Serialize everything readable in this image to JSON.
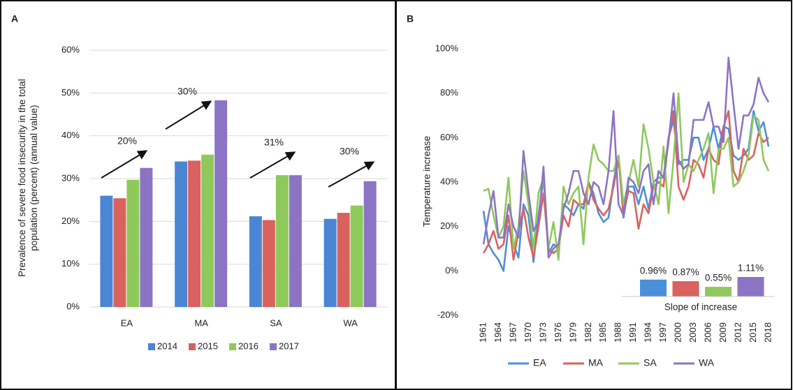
{
  "chart_data": [
    {
      "type": "bar",
      "panel": "A",
      "y_label": "Prevalence of severe food insecurity in the total population (percent) (annual value)",
      "categories": [
        "EA",
        "MA",
        "SA",
        "WA"
      ],
      "series": [
        {
          "name": "2014",
          "color": "#4a86d4",
          "values": [
            26,
            34,
            21.2,
            20.6
          ]
        },
        {
          "name": "2015",
          "color": "#d9625e",
          "values": [
            25.4,
            34.2,
            20.3,
            22
          ]
        },
        {
          "name": "2016",
          "color": "#8fc85b",
          "values": [
            29.7,
            35.6,
            30.8,
            23.7
          ]
        },
        {
          "name": "2017",
          "color": "#8c74c4",
          "values": [
            32.5,
            48.3,
            30.8,
            29.4
          ]
        }
      ],
      "annotations": [
        "20%",
        "30%",
        "31%",
        "30%"
      ],
      "ylim": [
        0,
        60
      ],
      "yticks": [
        {
          "value": 0,
          "label": "0%"
        },
        {
          "value": 10,
          "label": "10%"
        },
        {
          "value": 20,
          "label": "20%"
        },
        {
          "value": 30,
          "label": "30%"
        },
        {
          "value": 40,
          "label": "40%"
        },
        {
          "value": 50,
          "label": "50%"
        },
        {
          "value": 60,
          "label": "60%"
        }
      ],
      "grid": true,
      "legend": "bottom"
    },
    {
      "type": "line",
      "panel": "B",
      "y_label": "Temperature increase",
      "x": [
        1961,
        1962,
        1963,
        1964,
        1965,
        1966,
        1967,
        1968,
        1969,
        1970,
        1971,
        1972,
        1973,
        1974,
        1975,
        1976,
        1977,
        1978,
        1979,
        1980,
        1981,
        1982,
        1983,
        1984,
        1985,
        1986,
        1987,
        1988,
        1989,
        1990,
        1991,
        1992,
        1993,
        1994,
        1995,
        1996,
        1997,
        1998,
        1999,
        2000,
        2001,
        2002,
        2003,
        2004,
        2005,
        2006,
        2007,
        2008,
        2009,
        2010,
        2011,
        2012,
        2013,
        2014,
        2015,
        2016,
        2017,
        2018
      ],
      "series": [
        {
          "name": "EA",
          "color": "#4a90d9",
          "values": [
            27,
            12,
            8,
            5,
            0,
            20,
            12,
            6,
            30,
            25,
            4,
            25,
            42,
            8,
            12,
            10,
            30,
            28,
            25,
            30,
            28,
            40,
            35,
            26,
            22,
            24,
            40,
            52,
            24,
            38,
            38,
            30,
            38,
            28,
            40,
            42,
            42,
            60,
            68,
            48,
            50,
            50,
            60,
            60,
            50,
            55,
            65,
            55,
            65,
            64,
            52,
            50,
            52,
            55,
            72,
            63,
            67,
            56
          ]
        },
        {
          "name": "MA",
          "color": "#d9625e",
          "values": [
            8,
            12,
            18,
            10,
            12,
            25,
            5,
            18,
            28,
            15,
            6,
            20,
            35,
            10,
            8,
            10,
            25,
            20,
            32,
            30,
            30,
            40,
            32,
            28,
            25,
            28,
            38,
            50,
            26,
            36,
            35,
            19,
            30,
            26,
            38,
            40,
            38,
            60,
            72,
            38,
            32,
            38,
            50,
            48,
            42,
            55,
            50,
            48,
            65,
            72,
            45,
            40,
            55,
            50,
            52,
            62,
            58,
            60
          ]
        },
        {
          "name": "SA",
          "color": "#8fc85b",
          "values": [
            36,
            37,
            25,
            15,
            20,
            42,
            10,
            20,
            45,
            30,
            10,
            35,
            42,
            10,
            22,
            5,
            38,
            30,
            35,
            38,
            12,
            42,
            57,
            50,
            48,
            45,
            45,
            52,
            30,
            40,
            50,
            38,
            66,
            55,
            40,
            30,
            56,
            26,
            50,
            80,
            40,
            48,
            45,
            50,
            55,
            62,
            35,
            55,
            55,
            60,
            38,
            40,
            45,
            52,
            70,
            68,
            50,
            45
          ]
        },
        {
          "name": "WA",
          "color": "#8c74c4",
          "values": [
            12,
            25,
            36,
            15,
            15,
            30,
            20,
            15,
            54,
            35,
            18,
            22,
            47,
            6,
            10,
            12,
            28,
            35,
            45,
            45,
            35,
            30,
            40,
            38,
            30,
            45,
            72,
            30,
            25,
            42,
            40,
            35,
            45,
            48,
            30,
            45,
            42,
            58,
            80,
            50,
            46,
            48,
            68,
            68,
            68,
            76,
            65,
            65,
            58,
            96,
            75,
            55,
            70,
            70,
            75,
            87,
            80,
            76
          ]
        }
      ],
      "xlim": [
        1961,
        2018
      ],
      "xticks": [
        1961,
        1964,
        1967,
        1970,
        1973,
        1976,
        1979,
        1982,
        1985,
        1988,
        1991,
        1994,
        1997,
        2000,
        2003,
        2006,
        2009,
        2012,
        2015,
        2018
      ],
      "ylim": [
        -20,
        100
      ],
      "yticks": [
        {
          "value": -20,
          "label": "-20%"
        },
        {
          "value": 0,
          "label": "0%"
        },
        {
          "value": 20,
          "label": "20%"
        },
        {
          "value": 40,
          "label": "40%"
        },
        {
          "value": 60,
          "label": "60%"
        },
        {
          "value": 80,
          "label": "80%"
        },
        {
          "value": 100,
          "label": "100%"
        }
      ],
      "grid": false,
      "legend": "bottom",
      "inset": {
        "title": "Slope of increase",
        "values": [
          0.96,
          0.87,
          0.55,
          1.11
        ],
        "value_labels": [
          "0.96%",
          "0.87%",
          "0.55%",
          "1.11%"
        ]
      }
    }
  ]
}
